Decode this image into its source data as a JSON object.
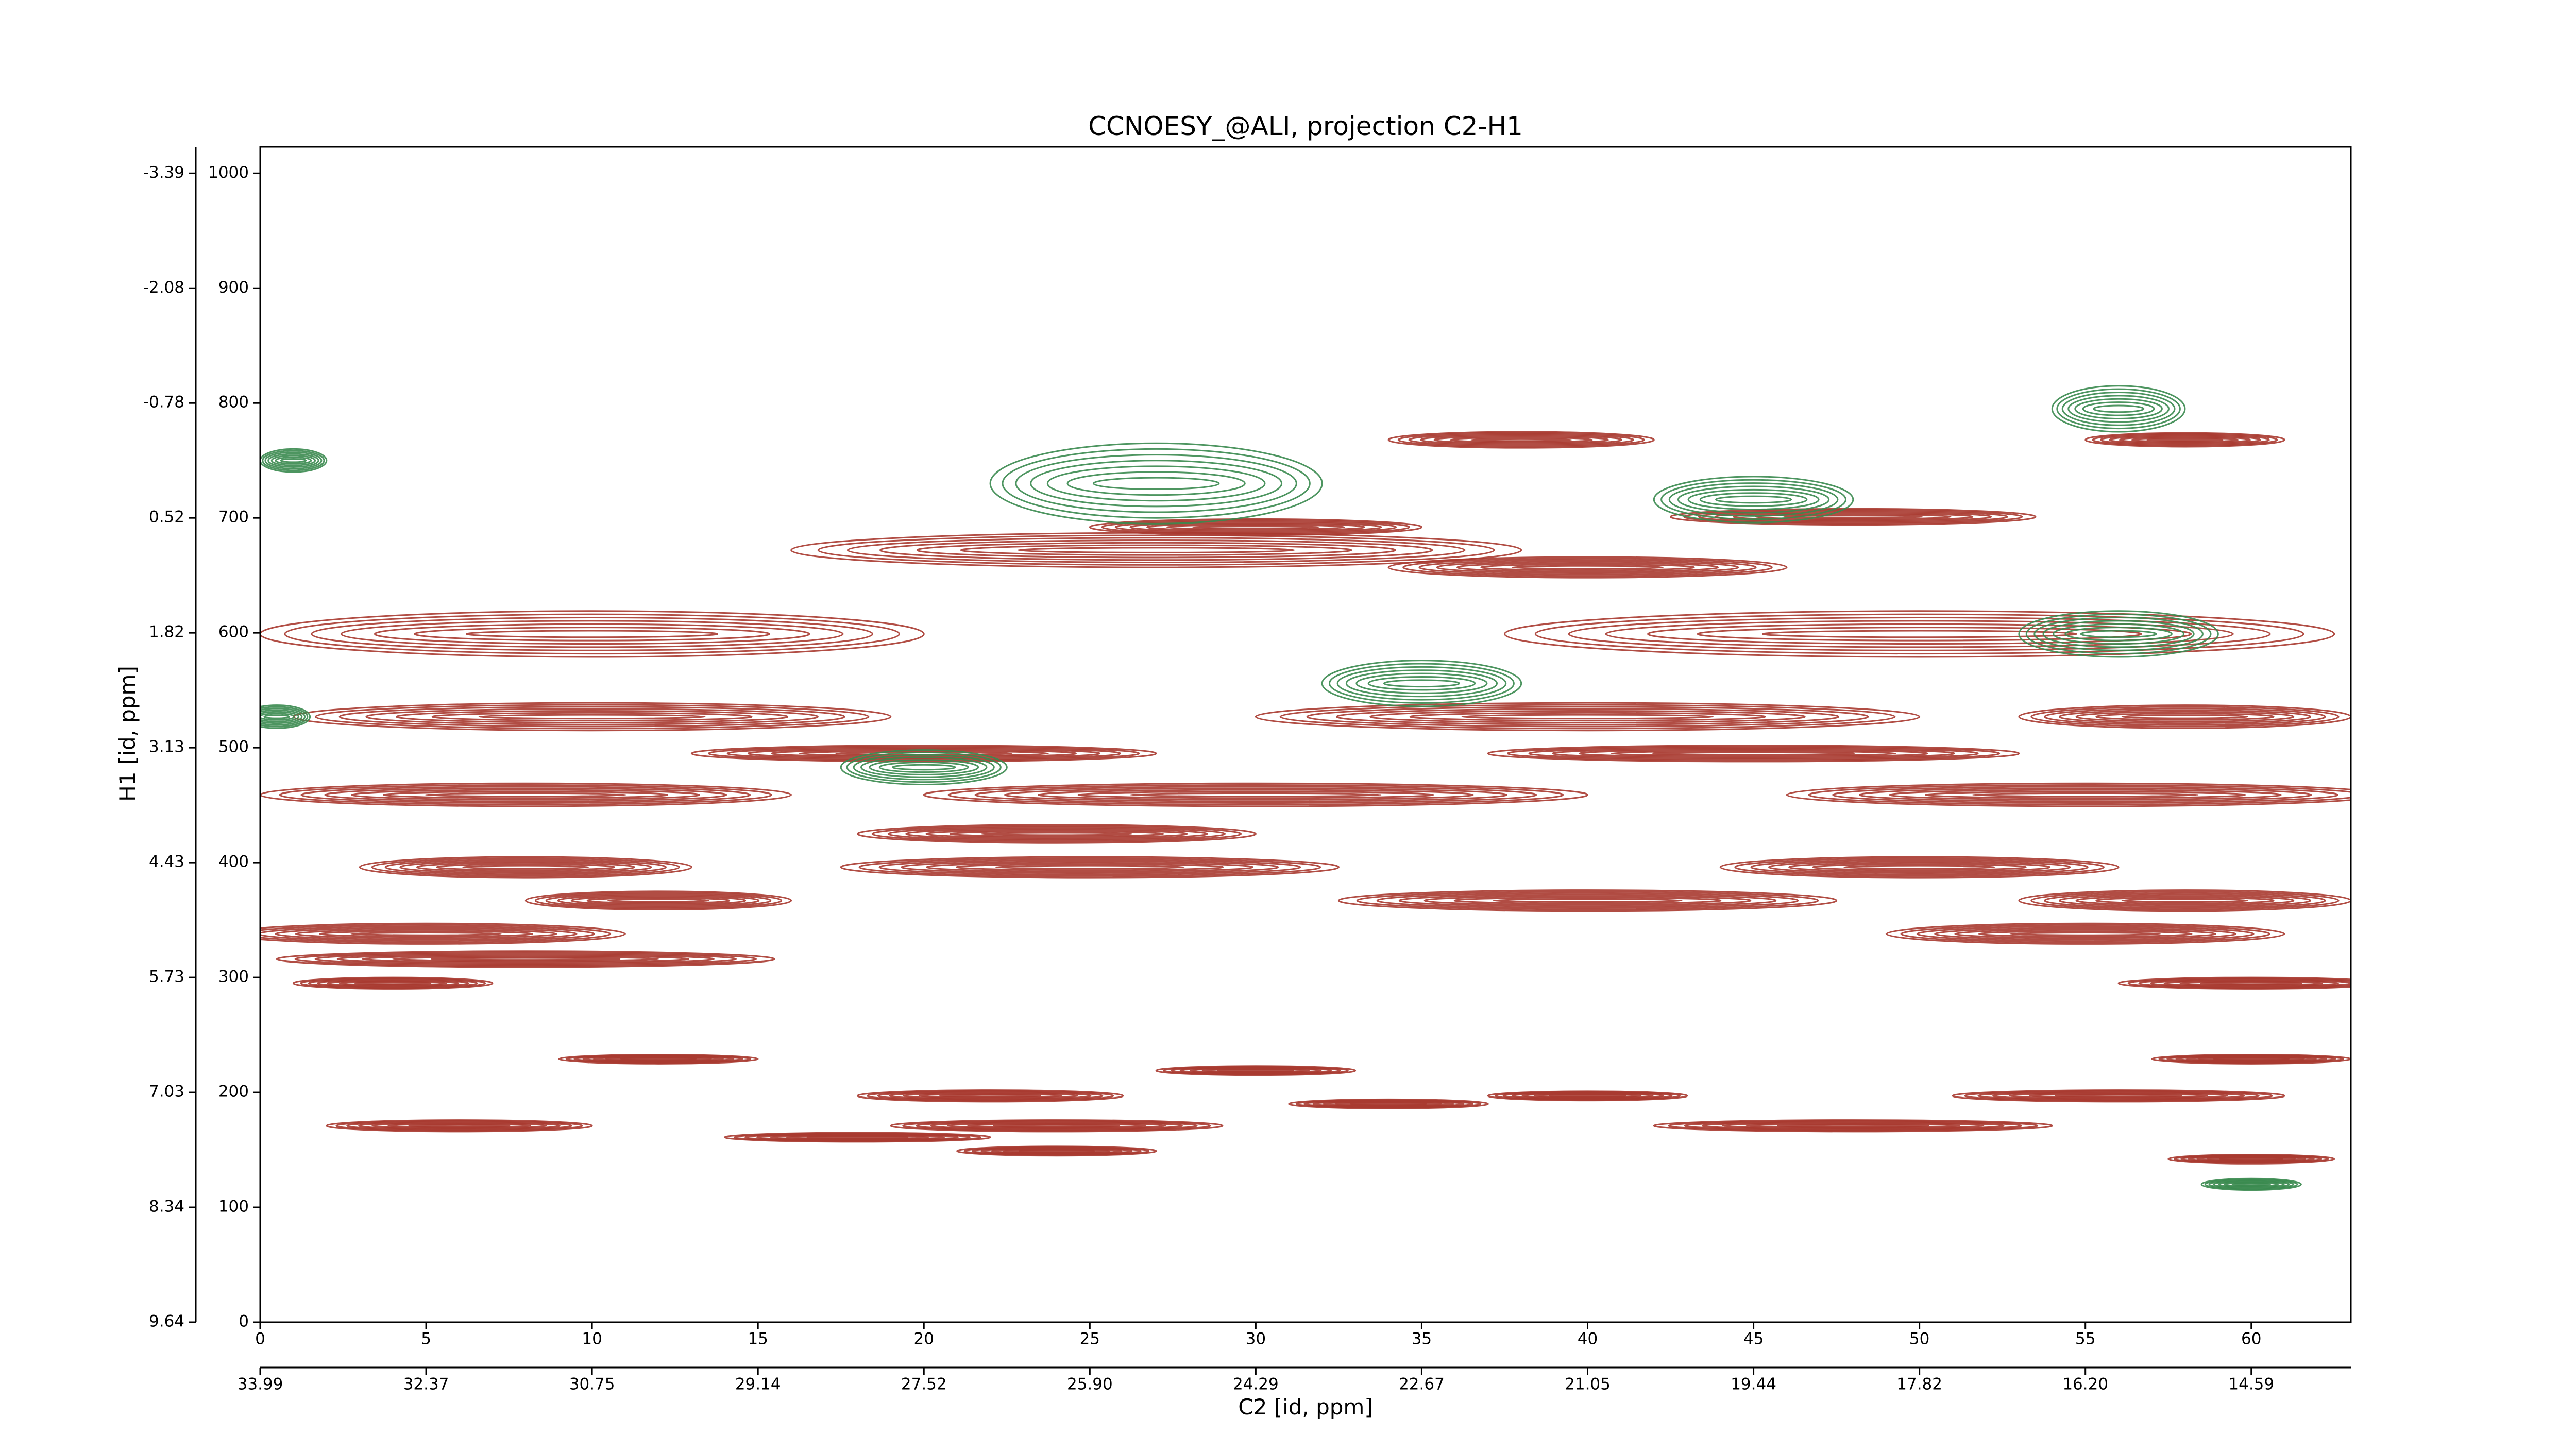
{
  "chart_data": {
    "type": "contour",
    "title": "CCNOESY_@ALI, projection C2-H1",
    "xlabel": "C2 [id, ppm]",
    "ylabel": "H1 [id, ppm]",
    "xlim": [
      0,
      63
    ],
    "ylim": [
      0,
      1023
    ],
    "xticks": [
      0,
      5,
      10,
      15,
      20,
      25,
      30,
      35,
      40,
      45,
      50,
      55,
      60
    ],
    "yticks": [
      0,
      100,
      200,
      300,
      400,
      500,
      600,
      700,
      800,
      900,
      1000
    ],
    "xticks_ppm": [
      {
        "value": 0,
        "label": "33.99"
      },
      {
        "value": 5,
        "label": "32.37"
      },
      {
        "value": 10,
        "label": "30.75"
      },
      {
        "value": 15,
        "label": "29.14"
      },
      {
        "value": 20,
        "label": "27.52"
      },
      {
        "value": 25,
        "label": "25.90"
      },
      {
        "value": 30,
        "label": "24.29"
      },
      {
        "value": 35,
        "label": "22.67"
      },
      {
        "value": 40,
        "label": "21.05"
      },
      {
        "value": 45,
        "label": "19.44"
      },
      {
        "value": 50,
        "label": "17.82"
      },
      {
        "value": 55,
        "label": "16.20"
      },
      {
        "value": 60,
        "label": "14.59"
      }
    ],
    "yticks_ppm": [
      {
        "value": 0,
        "label": "9.64"
      },
      {
        "value": 100,
        "label": "8.34"
      },
      {
        "value": 200,
        "label": "7.03"
      },
      {
        "value": 300,
        "label": "5.73"
      },
      {
        "value": 400,
        "label": "4.43"
      },
      {
        "value": 500,
        "label": "3.13"
      },
      {
        "value": 600,
        "label": "1.82"
      },
      {
        "value": 700,
        "label": "0.52"
      },
      {
        "value": 800,
        "label": "-0.78"
      },
      {
        "value": 900,
        "label": "-2.08"
      },
      {
        "value": 1000,
        "label": "-3.39"
      }
    ],
    "series": [
      {
        "color": "#a83a30",
        "x": [
          8,
          30,
          55,
          10,
          40,
          58,
          20,
          45,
          10,
          50,
          27,
          30,
          48,
          38,
          58,
          40,
          24,
          8,
          25,
          50,
          12,
          40,
          58,
          5,
          55,
          8,
          4,
          60,
          12,
          60,
          30,
          22,
          40,
          56,
          34,
          6,
          24,
          48,
          18,
          24,
          60
        ],
        "y": [
          459,
          459,
          459,
          527,
          527,
          527,
          495,
          495,
          599,
          599,
          672,
          692,
          701,
          768,
          768,
          657,
          425,
          396,
          396,
          396,
          367,
          367,
          367,
          338,
          338,
          316,
          295,
          295,
          229,
          229,
          219,
          197,
          197,
          197,
          190,
          171,
          171,
          171,
          161,
          149,
          142
        ],
        "width": [
          16,
          20,
          18,
          18,
          20,
          10,
          14,
          16,
          20,
          25,
          22,
          10,
          11,
          8,
          6,
          12,
          12,
          10,
          15,
          12,
          8,
          15,
          10,
          12,
          12,
          15,
          6,
          8,
          6,
          6,
          6,
          8,
          6,
          10,
          6,
          8,
          10,
          12,
          8,
          6,
          5
        ],
        "height": [
          20,
          20,
          20,
          24,
          24,
          20,
          14,
          14,
          40,
          40,
          30,
          14,
          14,
          14,
          12,
          18,
          16,
          18,
          18,
          18,
          16,
          18,
          18,
          18,
          18,
          14,
          10,
          10,
          8,
          8,
          8,
          10,
          8,
          10,
          8,
          10,
          10,
          10,
          8,
          8,
          8
        ]
      },
      {
        "color": "#3a8a4f",
        "x": [
          27,
          45,
          56,
          56,
          35,
          20,
          0.5,
          1,
          60
        ],
        "y": [
          730,
          716,
          795,
          599,
          556,
          483,
          527,
          750,
          120
        ],
        "width": [
          10,
          6,
          4,
          6,
          6,
          5,
          2,
          2,
          3
        ],
        "height": [
          70,
          40,
          40,
          40,
          40,
          30,
          20,
          20,
          10
        ]
      }
    ]
  }
}
